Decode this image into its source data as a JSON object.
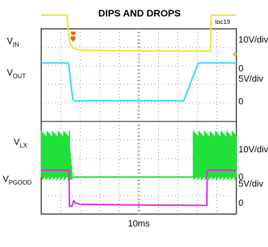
{
  "chart_data": {
    "type": "line",
    "title": "DIPS AND DROPS",
    "tag": "toc19",
    "xlabel": "10ms",
    "x_divisions": 10,
    "x_range_ms": [
      0,
      100
    ],
    "grid": true,
    "channels": [
      {
        "id": "vin",
        "label_main": "V",
        "label_sub": "IN",
        "color": "#e8e43c",
        "scale": "10V/div",
        "zero_label": "0",
        "baseline_div": 3,
        "points": [
          [
            0,
            3.0
          ],
          [
            13.2,
            3.0
          ],
          [
            14.0,
            2.0
          ],
          [
            15.0,
            1.4
          ],
          [
            16.5,
            1.2
          ],
          [
            20,
            1.1
          ],
          [
            35,
            1.08
          ],
          [
            60,
            1.06
          ],
          [
            86.8,
            1.06
          ],
          [
            87.0,
            3.0
          ],
          [
            100,
            3.0
          ]
        ]
      },
      {
        "id": "vout",
        "label_main": "V",
        "label_sub": "OUT",
        "color": "#34dcf0",
        "scale": "5V/div",
        "zero_label": "0",
        "baseline_div": 0,
        "points": [
          [
            0,
            2.05
          ],
          [
            14.0,
            2.05
          ],
          [
            15.6,
            0.55
          ],
          [
            16.3,
            0.05
          ],
          [
            17,
            0.0
          ],
          [
            73,
            0.0
          ],
          [
            80.5,
            2.05
          ],
          [
            100,
            2.05
          ]
        ]
      },
      {
        "id": "vlx",
        "label_main": "V",
        "label_sub": "LX",
        "color": "#22e03a",
        "scale": "10V/div",
        "zero_label": "0",
        "baseline_div": 0,
        "high_div": 2.4,
        "switching_ms": [
          [
            0,
            14.8
          ],
          [
            77.8,
            100
          ]
        ],
        "tail_ms": [
          14.8,
          16.2
        ],
        "low_div": 0
      },
      {
        "id": "vpgood",
        "label_main": "V",
        "label_sub": "PGOOD",
        "color": "#e02ee0",
        "scale": "5V/div",
        "zero_label": "0",
        "baseline_div": 0,
        "points": [
          [
            0,
            2.0
          ],
          [
            14.3,
            2.0
          ],
          [
            14.4,
            0.05
          ],
          [
            15.8,
            0.05
          ],
          [
            16.6,
            0.35
          ],
          [
            17.6,
            0.22
          ],
          [
            20,
            0.16
          ],
          [
            40,
            0.13
          ],
          [
            60,
            0.11
          ],
          [
            84.9,
            0.1
          ],
          [
            85.0,
            2.0
          ],
          [
            100,
            2.0
          ]
        ]
      }
    ],
    "markers": {
      "trigger_color": "#e06a1c",
      "trigger_ms": 16,
      "level_color": "#e8c82a"
    }
  }
}
